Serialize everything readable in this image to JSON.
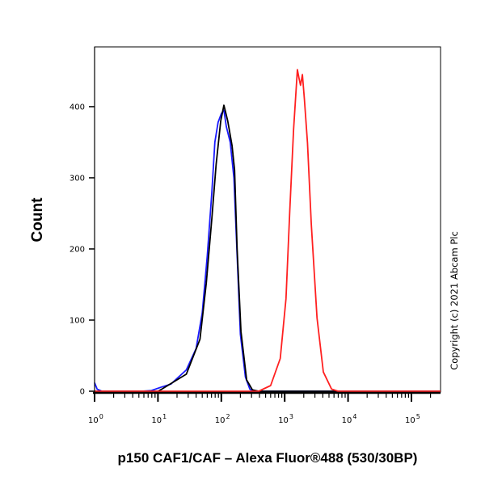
{
  "chart_data": {
    "type": "line",
    "title": "",
    "xlabel": "p150 CAF1/CAF – Alexa Fluor®488 (530/30BP)",
    "ylabel": "Count",
    "x_scale": "log",
    "xlim": [
      1,
      288000
    ],
    "ylim": [
      0,
      484
    ],
    "x_ticks": [
      {
        "base": "10",
        "exp": "0",
        "value": 1
      },
      {
        "base": "10",
        "exp": "1",
        "value": 10
      },
      {
        "base": "10",
        "exp": "2",
        "value": 100
      },
      {
        "base": "10",
        "exp": "3",
        "value": 1000
      },
      {
        "base": "10",
        "exp": "4",
        "value": 10000
      },
      {
        "base": "10",
        "exp": "5",
        "value": 100000
      }
    ],
    "y_ticks": [
      "0",
      "100",
      "200",
      "300",
      "400"
    ],
    "grid": false,
    "legend": "none",
    "annotation": "Copyright (c) 2021 Abcam Plc",
    "series": [
      {
        "color": "#1a1aff",
        "x": [
          1,
          1.1,
          1.3,
          5.6,
          7.9,
          11.5,
          16,
          28,
          40,
          50,
          60,
          71,
          79,
          89,
          100,
          110,
          120,
          138,
          158,
          178,
          200,
          240,
          282,
          316,
          288000
        ],
        "y": [
          12,
          3,
          0,
          0,
          1,
          6,
          10,
          30,
          60,
          110,
          190,
          280,
          350,
          378,
          390,
          395,
          372,
          350,
          300,
          190,
          80,
          20,
          3,
          0,
          0
        ]
      },
      {
        "color": "#000000",
        "x": [
          1,
          10,
          11.5,
          28,
          46,
          58,
          71,
          83,
          98,
          110,
          126,
          148,
          162,
          178,
          204,
          251,
          309,
          389,
          288000
        ],
        "y": [
          0,
          0,
          3,
          24,
          73,
          152,
          243,
          319,
          380,
          402,
          380,
          345,
          311,
          198,
          84,
          16,
          2,
          0,
          0
        ]
      },
      {
        "color": "#ff2020",
        "x": [
          1,
          389,
          600,
          851,
          1047,
          1202,
          1380,
          1585,
          1680,
          1778,
          1905,
          2050,
          2291,
          2630,
          3236,
          4074,
          5495,
          7000,
          288000
        ],
        "y": [
          0,
          0,
          8,
          46,
          130,
          254,
          368,
          452,
          440,
          430,
          445,
          410,
          349,
          235,
          103,
          27,
          3,
          0,
          0
        ]
      }
    ]
  }
}
